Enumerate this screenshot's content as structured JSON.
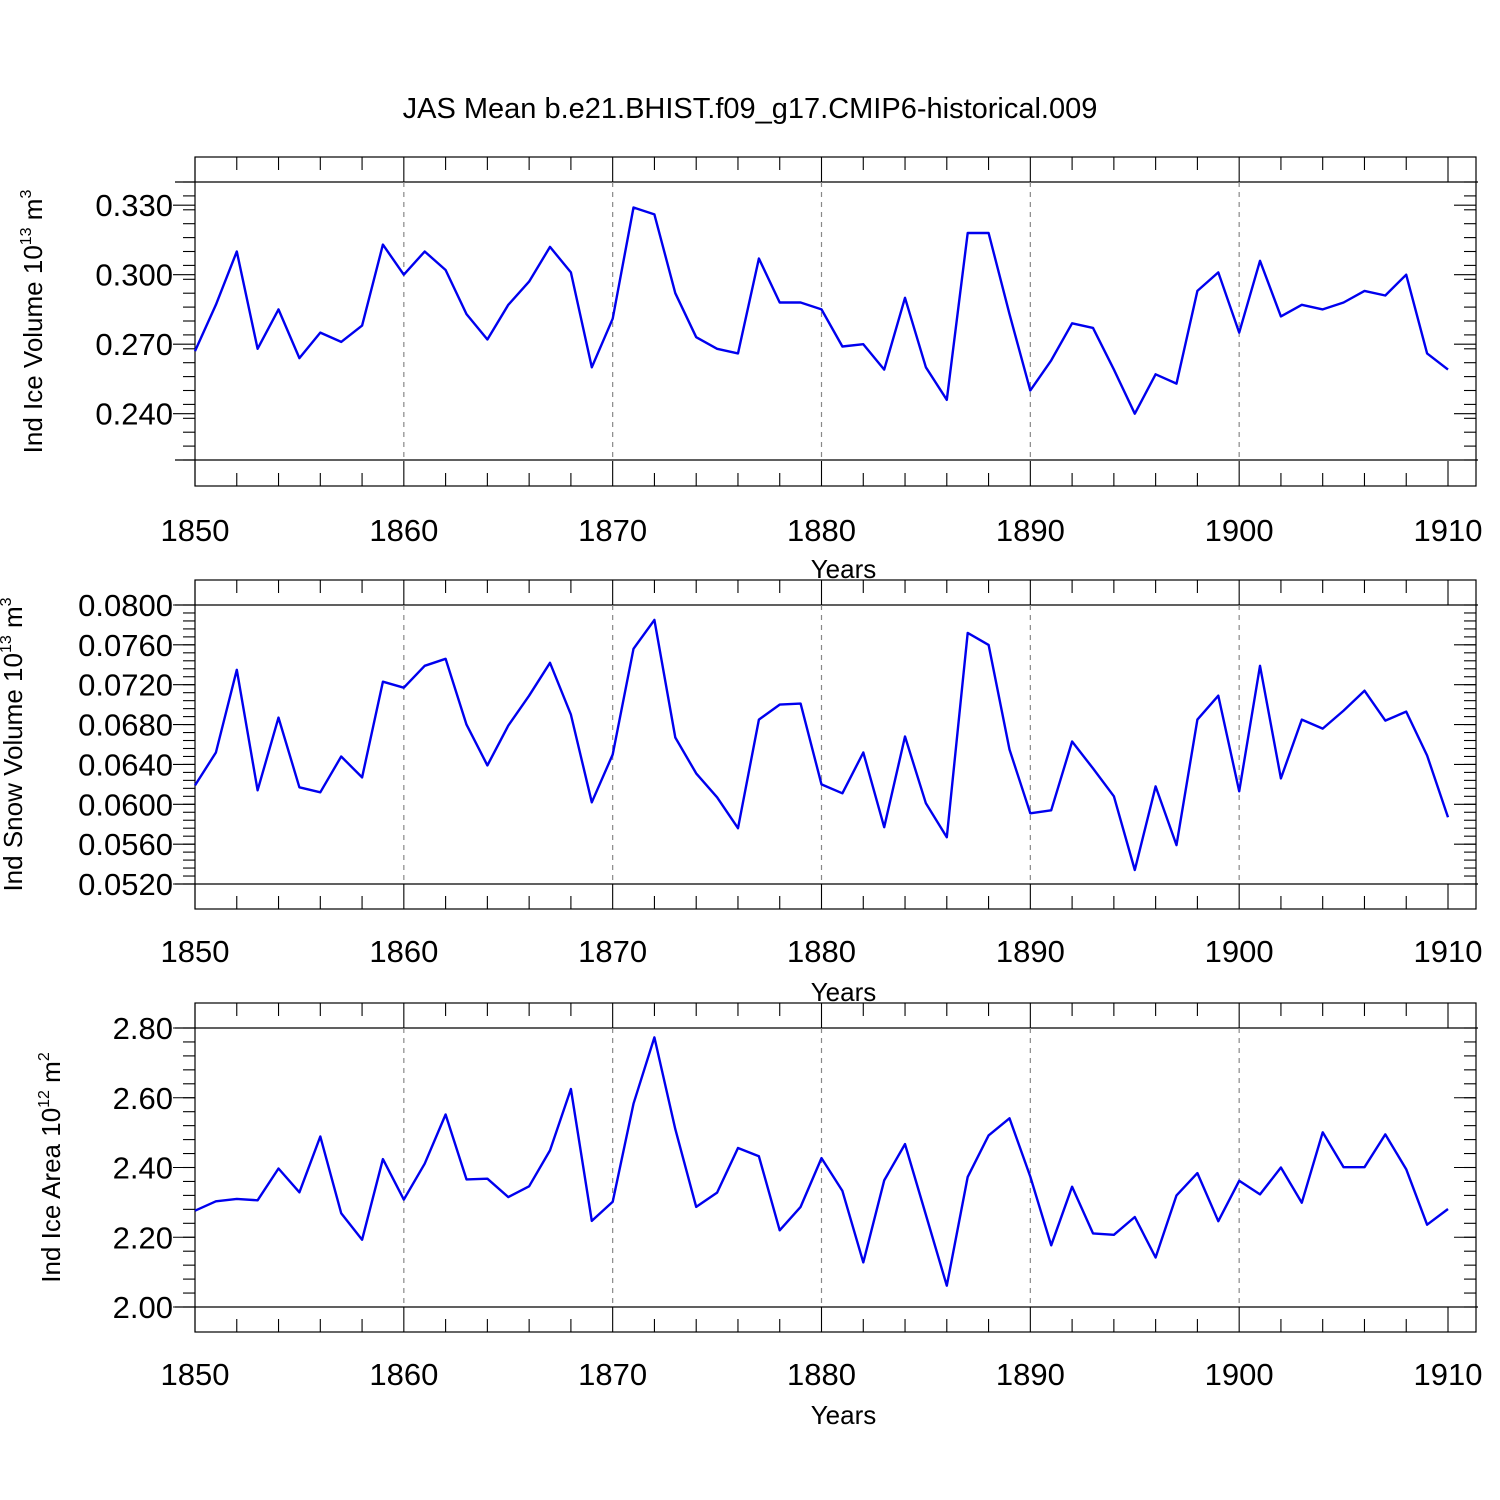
{
  "chart_data": {
    "type": "line",
    "title": "JAS Mean b.e21.BHIST.f09_g17.CMIP6-historical.009",
    "x": [
      1850,
      1851,
      1852,
      1853,
      1854,
      1855,
      1856,
      1857,
      1858,
      1859,
      1860,
      1861,
      1862,
      1863,
      1864,
      1865,
      1866,
      1867,
      1868,
      1869,
      1870,
      1871,
      1872,
      1873,
      1874,
      1875,
      1876,
      1877,
      1878,
      1879,
      1880,
      1881,
      1882,
      1883,
      1884,
      1885,
      1886,
      1887,
      1888,
      1889,
      1890,
      1891,
      1892,
      1893,
      1894,
      1895,
      1896,
      1897,
      1898,
      1899,
      1900,
      1901,
      1902,
      1903,
      1904,
      1905,
      1906,
      1907,
      1908,
      1909,
      1910
    ],
    "panels": [
      {
        "id": "ice-volume",
        "ylabel_main": "Ind Ice Volume 10",
        "ylabel_exp": "13",
        "ylabel_unit": " m",
        "ylabel_unit_exp": "3",
        "xlabel": "Years",
        "xlim": [
          1850,
          1910
        ],
        "ylim": [
          0.22,
          0.34
        ],
        "yticks": [
          0.24,
          0.27,
          0.3,
          0.33
        ],
        "ytick_labels": [
          "0.240",
          "0.270",
          "0.300",
          "0.330"
        ],
        "yminor_step": 0.006,
        "xticks": [
          1850,
          1860,
          1870,
          1880,
          1890,
          1900,
          1910
        ],
        "xtick_labels": [
          "1850",
          "1860",
          "1870",
          "1880",
          "1890",
          "1900",
          "1910"
        ],
        "values": [
          0.267,
          0.287,
          0.31,
          0.268,
          0.285,
          0.264,
          0.275,
          0.271,
          0.278,
          0.313,
          0.3,
          0.31,
          0.302,
          0.283,
          0.272,
          0.287,
          0.297,
          0.312,
          0.301,
          0.26,
          0.281,
          0.329,
          0.326,
          0.292,
          0.273,
          0.268,
          0.266,
          0.307,
          0.288,
          0.288,
          0.285,
          0.269,
          0.27,
          0.259,
          0.29,
          0.26,
          0.246,
          0.318,
          0.318,
          0.283,
          0.25,
          0.263,
          0.279,
          0.277,
          0.259,
          0.24,
          0.257,
          0.253,
          0.293,
          0.301,
          0.275,
          0.306,
          0.282,
          0.287,
          0.285,
          0.288,
          0.293,
          0.291,
          0.3,
          0.266,
          0.259
        ]
      },
      {
        "id": "snow-volume",
        "ylabel_main": "Ind Snow Volume 10",
        "ylabel_exp": "13",
        "ylabel_unit": " m",
        "ylabel_unit_exp": "3",
        "xlabel": "Years",
        "xlim": [
          1850,
          1910
        ],
        "ylim": [
          0.052,
          0.08
        ],
        "yticks": [
          0.052,
          0.056,
          0.06,
          0.064,
          0.068,
          0.072,
          0.076,
          0.08
        ],
        "ytick_labels": [
          "0.0520",
          "0.0560",
          "0.0600",
          "0.0640",
          "0.0680",
          "0.0720",
          "0.0760",
          "0.0800"
        ],
        "yminor_step": 0.0008,
        "xticks": [
          1850,
          1860,
          1870,
          1880,
          1890,
          1900,
          1910
        ],
        "xtick_labels": [
          "1850",
          "1860",
          "1870",
          "1880",
          "1890",
          "1900",
          "1910"
        ],
        "values": [
          0.0619,
          0.0652,
          0.0735,
          0.0614,
          0.0687,
          0.0617,
          0.0612,
          0.0648,
          0.0627,
          0.0723,
          0.0717,
          0.0739,
          0.0746,
          0.068,
          0.0639,
          0.0679,
          0.0709,
          0.0742,
          0.069,
          0.0602,
          0.065,
          0.0756,
          0.0785,
          0.0667,
          0.0631,
          0.0607,
          0.0576,
          0.0685,
          0.07,
          0.0701,
          0.062,
          0.0611,
          0.0652,
          0.0577,
          0.0668,
          0.0601,
          0.0567,
          0.0772,
          0.076,
          0.0655,
          0.0591,
          0.0594,
          0.0663,
          0.0636,
          0.0608,
          0.0534,
          0.0618,
          0.0559,
          0.0685,
          0.0709,
          0.0613,
          0.0739,
          0.0626,
          0.0685,
          0.0676,
          0.0694,
          0.0714,
          0.0684,
          0.0693,
          0.0649,
          0.0587
        ]
      },
      {
        "id": "ice-area",
        "ylabel_main": "Ind Ice Area 10",
        "ylabel_exp": "12",
        "ylabel_unit": " m",
        "ylabel_unit_exp": "2",
        "xlabel": "Years",
        "xlim": [
          1850,
          1910
        ],
        "ylim": [
          2.0,
          2.8
        ],
        "yticks": [
          2.0,
          2.2,
          2.4,
          2.6,
          2.8
        ],
        "ytick_labels": [
          "2.00",
          "2.20",
          "2.40",
          "2.60",
          "2.80"
        ],
        "yminor_step": 0.04,
        "xticks": [
          1850,
          1860,
          1870,
          1880,
          1890,
          1900,
          1910
        ],
        "xtick_labels": [
          "1850",
          "1860",
          "1870",
          "1880",
          "1890",
          "1900",
          "1910"
        ],
        "values": [
          2.276,
          2.303,
          2.31,
          2.306,
          2.397,
          2.329,
          2.489,
          2.269,
          2.193,
          2.424,
          2.308,
          2.411,
          2.552,
          2.366,
          2.368,
          2.315,
          2.346,
          2.449,
          2.625,
          2.247,
          2.302,
          2.583,
          2.773,
          2.51,
          2.287,
          2.328,
          2.456,
          2.432,
          2.22,
          2.287,
          2.427,
          2.333,
          2.128,
          2.363,
          2.467,
          2.264,
          2.061,
          2.373,
          2.492,
          2.541,
          2.374,
          2.177,
          2.345,
          2.211,
          2.207,
          2.258,
          2.142,
          2.32,
          2.384,
          2.246,
          2.362,
          2.323,
          2.4,
          2.299,
          2.501,
          2.401,
          2.401,
          2.495,
          2.395,
          2.236,
          2.281
        ]
      }
    ]
  },
  "style": {
    "line_color": "#0000ee",
    "frame_color": "#000000",
    "grid_color": "#888888"
  }
}
